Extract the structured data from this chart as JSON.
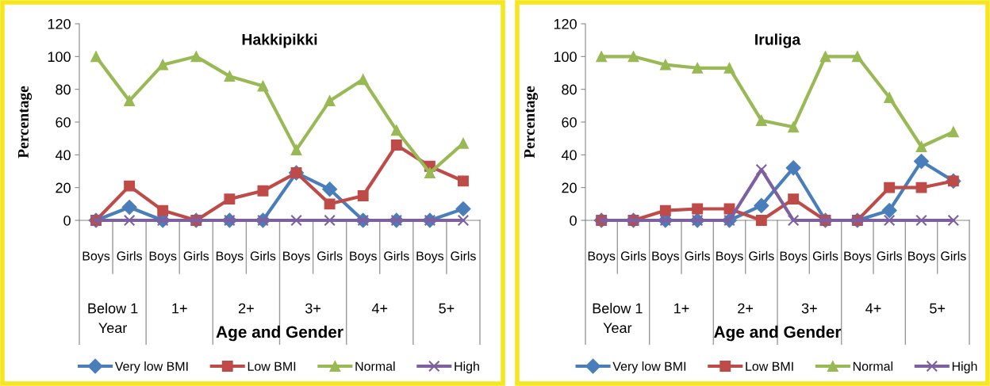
{
  "chart_data": [
    {
      "type": "line",
      "title": "Hakkipikki",
      "xlabel": "Age and Gender",
      "ylabel": "Percentage",
      "categories": [
        "Boys",
        "Girls",
        "Boys",
        "Girls",
        "Boys",
        "Girls",
        "Boys",
        "Girls",
        "Boys",
        "Girls",
        "Boys",
        "Girls"
      ],
      "annotations": [
        "Below 1\nYear",
        "1+",
        "2+",
        "3+",
        "4+",
        "5+"
      ],
      "series": [
        {
          "name": "Very low BMI",
          "color": "#4a7ebb",
          "marker": "diamond",
          "values": [
            0,
            8,
            0,
            0,
            0,
            0,
            29,
            19,
            0,
            0,
            0,
            7
          ]
        },
        {
          "name": "Low BMI",
          "color": "#be4b48",
          "marker": "square",
          "values": [
            0,
            21,
            6,
            0,
            13,
            18,
            29,
            10,
            15,
            46,
            33,
            24
          ]
        },
        {
          "name": "Normal",
          "color": "#98b954",
          "marker": "triangle",
          "values": [
            100,
            73,
            95,
            100,
            88,
            82,
            43,
            73,
            86,
            55,
            29,
            47
          ]
        },
        {
          "name": "High",
          "color": "#7d60a0",
          "marker": "cross",
          "values": [
            0,
            0,
            0,
            0,
            0,
            0,
            0,
            0,
            0,
            0,
            0,
            0
          ]
        }
      ],
      "ylim": [
        0,
        120
      ],
      "yticks": [
        0,
        20,
        40,
        60,
        80,
        100,
        120
      ],
      "grid": false,
      "legend": "bottom",
      "line_style": "solid"
    },
    {
      "type": "line",
      "title": "Iruliga",
      "xlabel": "Age and Gender",
      "ylabel": "Percentage",
      "categories": [
        "Boys",
        "Girls",
        "Boys",
        "Girls",
        "Boys",
        "Girls",
        "Boys",
        "Girls",
        "Boys",
        "Girls",
        "Boys",
        "Girls"
      ],
      "annotations": [
        "Below 1\nYear",
        "1+",
        "2+",
        "3+",
        "4+",
        "5+"
      ],
      "series": [
        {
          "name": "Very low BMI",
          "color": "#4a7ebb",
          "marker": "diamond",
          "values": [
            0,
            0,
            0,
            0,
            0,
            9,
            32,
            0,
            0,
            6,
            36,
            24
          ]
        },
        {
          "name": "Low BMI",
          "color": "#be4b48",
          "marker": "square",
          "values": [
            0,
            0,
            6,
            7,
            7,
            0,
            13,
            0,
            0,
            20,
            20,
            24
          ]
        },
        {
          "name": "Normal",
          "color": "#98b954",
          "marker": "triangle",
          "values": [
            100,
            100,
            95,
            93,
            93,
            61,
            57,
            100,
            100,
            75,
            45,
            54
          ]
        },
        {
          "name": "High",
          "color": "#7d60a0",
          "marker": "cross",
          "values": [
            0,
            0,
            0,
            0,
            0,
            31,
            0,
            0,
            0,
            0,
            0,
            0
          ]
        }
      ],
      "ylim": [
        0,
        120
      ],
      "yticks": [
        0,
        20,
        40,
        60,
        80,
        100,
        120
      ],
      "grid": false,
      "legend": "bottom",
      "line_style": "solid"
    }
  ]
}
